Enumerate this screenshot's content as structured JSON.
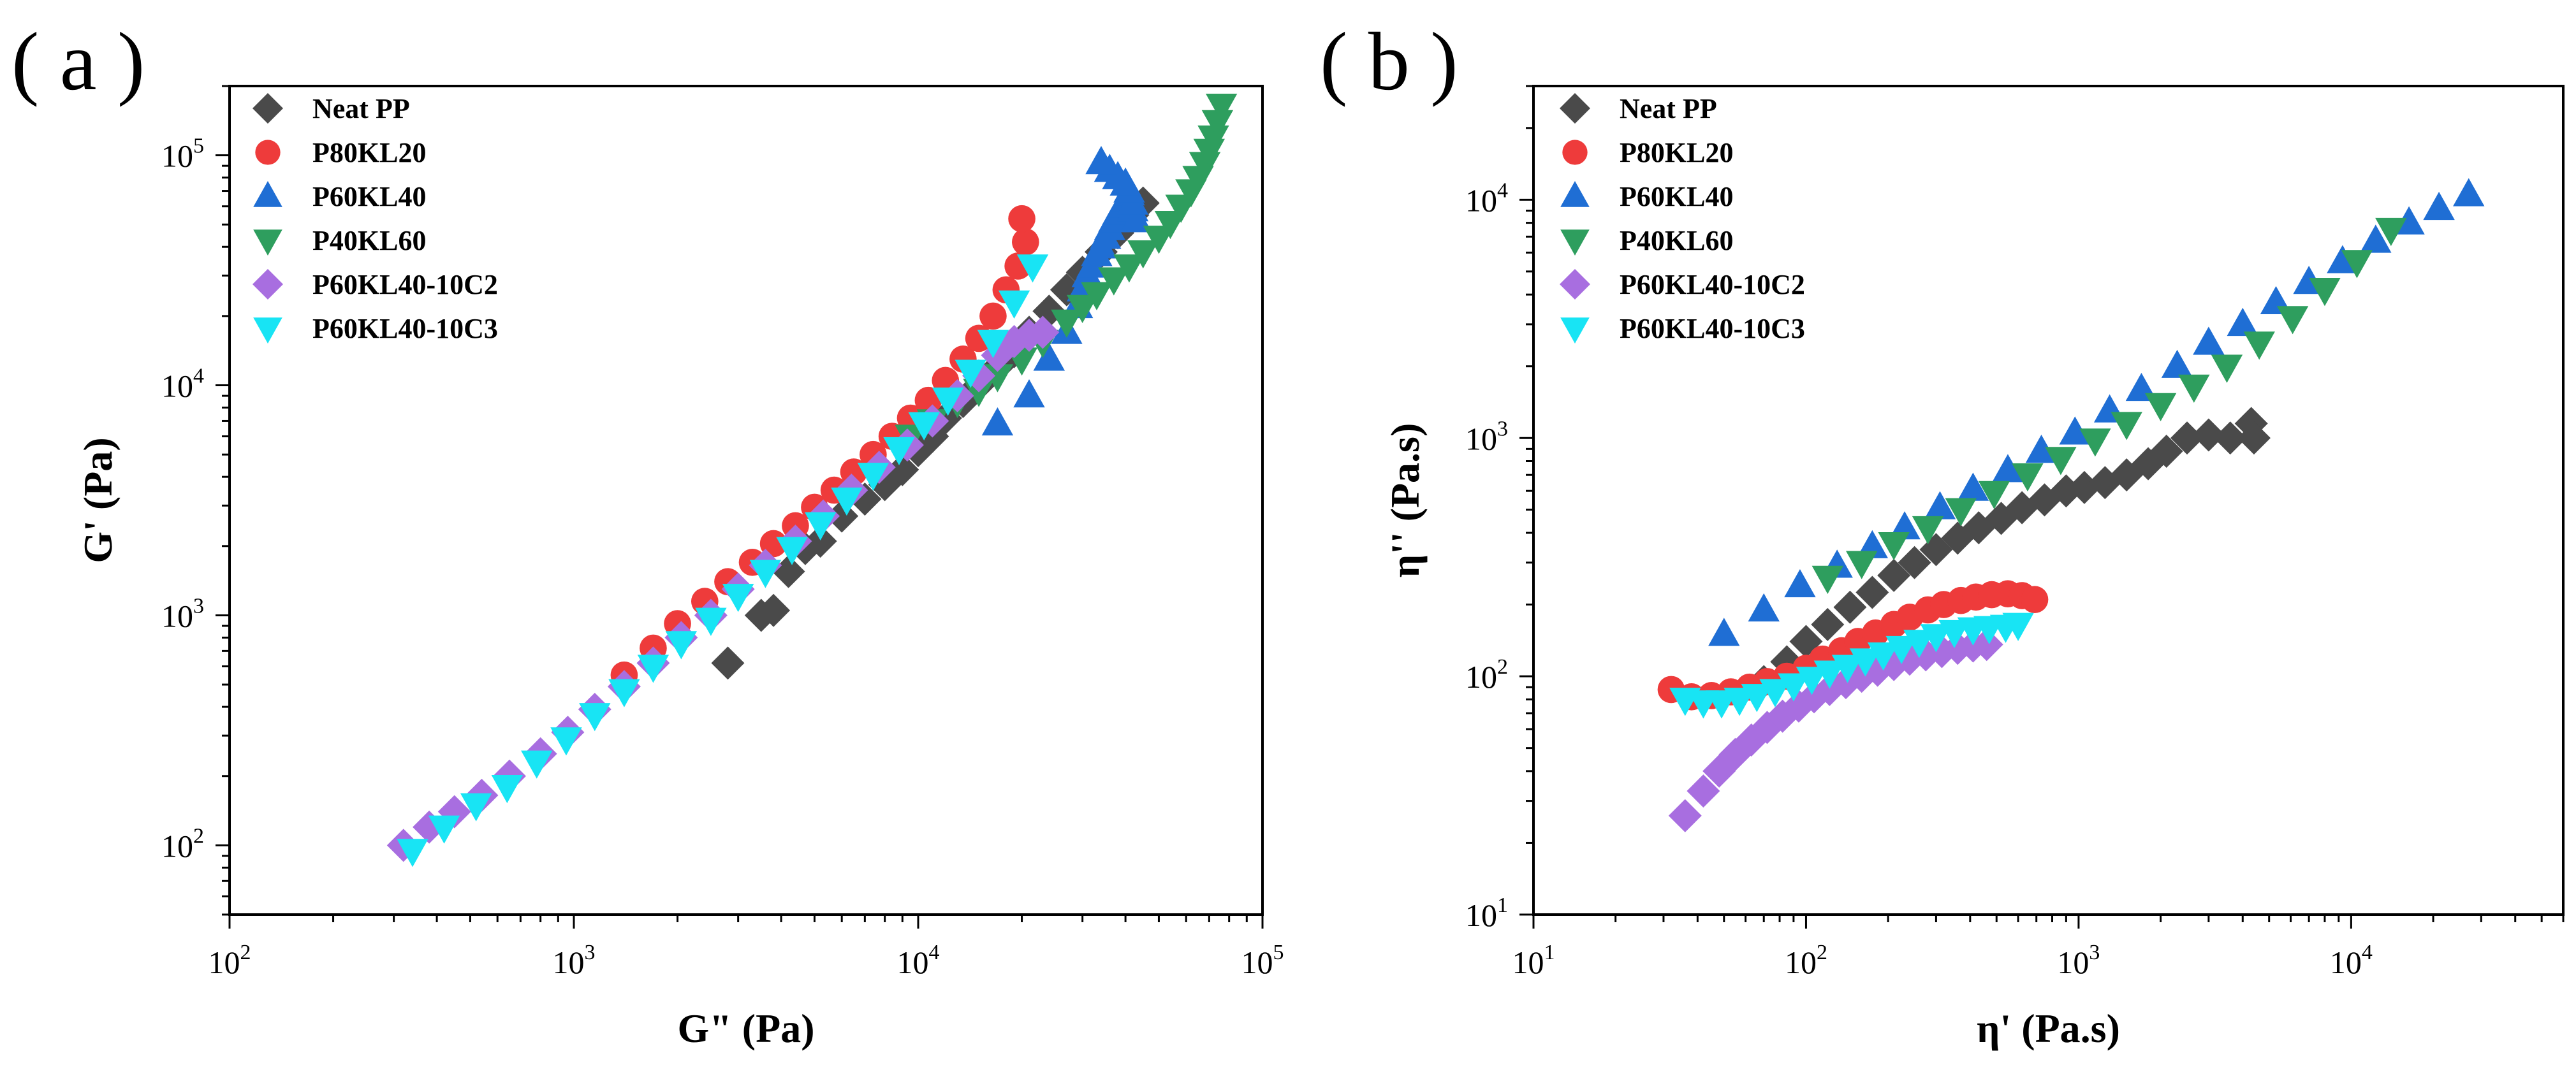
{
  "chart_data": [
    {
      "panel_label": "( a )",
      "type": "scatter",
      "xscale": "log",
      "yscale": "log",
      "xlabel": "G\" (Pa)",
      "ylabel": "G' (Pa)",
      "xlim": [
        100,
        100000
      ],
      "ylim": [
        50,
        200000
      ],
      "xticks": [
        {
          "value": 100,
          "base": "10",
          "exp": "2"
        },
        {
          "value": 1000,
          "base": "10",
          "exp": "3"
        },
        {
          "value": 10000,
          "base": "10",
          "exp": "4"
        },
        {
          "value": 100000,
          "base": "10",
          "exp": "5"
        }
      ],
      "yticks": [
        {
          "value": 100,
          "base": "10",
          "exp": "2"
        },
        {
          "value": 1000,
          "base": "10",
          "exp": "3"
        },
        {
          "value": 10000,
          "base": "10",
          "exp": "4"
        },
        {
          "value": 100000,
          "base": "10",
          "exp": "5"
        }
      ],
      "legend_position": "top-left",
      "series": [
        {
          "name": "Neat PP",
          "marker": "diamond",
          "color": "#4a4a4a",
          "x": [
            2800,
            3500,
            3800,
            4200,
            4700,
            5200,
            6000,
            7000,
            8000,
            9000,
            10000,
            11000,
            12000,
            13500,
            15000,
            17000,
            19000,
            21000,
            24000,
            27000,
            30000,
            34000,
            38000,
            42000,
            45000
          ],
          "y": [
            620,
            1000,
            1050,
            1550,
            1950,
            2100,
            2700,
            3200,
            3700,
            4300,
            5200,
            6000,
            7200,
            8500,
            10000,
            12000,
            14000,
            17000,
            21000,
            26000,
            31000,
            38000,
            46000,
            55000,
            62000
          ]
        },
        {
          "name": "P80KL20",
          "marker": "circle",
          "color": "#ee3b3b",
          "x": [
            1400,
            1700,
            2000,
            2400,
            2800,
            3300,
            3800,
            4400,
            5000,
            5700,
            6500,
            7400,
            8400,
            9500,
            10700,
            12000,
            13500,
            15000,
            16500,
            18000,
            19500,
            20500,
            20000
          ],
          "y": [
            550,
            720,
            920,
            1150,
            1400,
            1700,
            2050,
            2450,
            2950,
            3500,
            4200,
            5000,
            6000,
            7200,
            8600,
            10500,
            13000,
            16000,
            20000,
            26000,
            33000,
            42000,
            53000
          ]
        },
        {
          "name": "P60KL40",
          "marker": "triangle-up",
          "color": "#1f6ed4",
          "x": [
            17000,
            21000,
            24000,
            27000,
            29000,
            30000,
            31000,
            32000,
            33000,
            34000,
            35000,
            36000,
            37000,
            38000,
            39000,
            40000,
            41000,
            42000,
            43000,
            42000,
            41000,
            40000,
            38000,
            36000,
            34000
          ],
          "y": [
            6800,
            9000,
            13000,
            17000,
            22000,
            26000,
            30000,
            33000,
            37000,
            40000,
            44000,
            48000,
            52000,
            56000,
            60000,
            64000,
            68000,
            58000,
            52000,
            62000,
            70000,
            75000,
            80000,
            86000,
            93000
          ]
        },
        {
          "name": "P40KL60",
          "marker": "triangle-down",
          "color": "#2e9e5e",
          "x": [
            9500,
            11000,
            13000,
            15000,
            17000,
            20000,
            23000,
            27000,
            30000,
            33000,
            37000,
            41000,
            45000,
            50000,
            54000,
            58000,
            62000,
            65000,
            68000,
            70000,
            72000,
            74000,
            76000
          ],
          "y": [
            6000,
            7000,
            8500,
            9500,
            11000,
            13000,
            15500,
            19000,
            22000,
            25000,
            29000,
            33000,
            38000,
            44000,
            51000,
            60000,
            70000,
            80000,
            92000,
            105000,
            120000,
            140000,
            165000
          ]
        },
        {
          "name": "P60KL40-10C2",
          "marker": "diamond",
          "color": "#a86ee0",
          "x": [
            320,
            380,
            450,
            540,
            650,
            800,
            960,
            1150,
            1400,
            1700,
            2050,
            2500,
            3000,
            3600,
            4400,
            5300,
            6400,
            7700,
            9300,
            11000,
            13000,
            15000,
            17000,
            19000,
            21000,
            23000
          ],
          "y": [
            100,
            120,
            140,
            165,
            200,
            250,
            310,
            390,
            490,
            620,
            800,
            1000,
            1300,
            1650,
            2100,
            2700,
            3500,
            4400,
            5500,
            7000,
            9000,
            11000,
            13500,
            15500,
            16500,
            17000
          ]
        },
        {
          "name": "P60KL40-10C3",
          "marker": "triangle-down",
          "color": "#18e4f4",
          "x": [
            340,
            420,
            520,
            640,
            780,
            950,
            1150,
            1400,
            1700,
            2050,
            2500,
            3000,
            3600,
            4300,
            5200,
            6200,
            7400,
            8800,
            10400,
            12200,
            14200,
            16500,
            19000,
            21500
          ],
          "y": [
            95,
            120,
            150,
            180,
            230,
            290,
            370,
            470,
            600,
            760,
            960,
            1220,
            1550,
            1950,
            2500,
            3200,
            4100,
            5300,
            6800,
            8700,
            11500,
            15500,
            23000,
            33000
          ]
        }
      ]
    },
    {
      "panel_label": "( b )",
      "type": "scatter",
      "xscale": "log",
      "yscale": "log",
      "xlabel": "η' (Pa.s)",
      "ylabel": "η'' (Pa.s)",
      "xlim": [
        10,
        60000
      ],
      "ylim": [
        10,
        30000
      ],
      "xticks": [
        {
          "value": 10,
          "base": "10",
          "exp": "1"
        },
        {
          "value": 100,
          "base": "10",
          "exp": "2"
        },
        {
          "value": 1000,
          "base": "10",
          "exp": "3"
        },
        {
          "value": 10000,
          "base": "10",
          "exp": "4"
        }
      ],
      "yticks": [
        {
          "value": 10,
          "base": "10",
          "exp": "1"
        },
        {
          "value": 100,
          "base": "10",
          "exp": "2"
        },
        {
          "value": 1000,
          "base": "10",
          "exp": "3"
        },
        {
          "value": 10000,
          "base": "10",
          "exp": "4"
        }
      ],
      "legend_position": "top-left",
      "series": [
        {
          "name": "Neat PP",
          "marker": "diamond",
          "color": "#4a4a4a",
          "x": [
            70,
            85,
            100,
            120,
            145,
            175,
            210,
            250,
            300,
            360,
            430,
            520,
            620,
            750,
            900,
            1050,
            1250,
            1500,
            1800,
            2100,
            2500,
            3000,
            3600,
            4300,
            4400
          ],
          "y": [
            95,
            115,
            140,
            165,
            195,
            225,
            265,
            300,
            340,
            380,
            420,
            460,
            510,
            550,
            600,
            620,
            650,
            700,
            780,
            880,
            1000,
            1030,
            1000,
            1150,
            1000
          ]
        },
        {
          "name": "P80KL20",
          "marker": "circle",
          "color": "#ee3b3b",
          "x": [
            32,
            38,
            45,
            53,
            62,
            72,
            85,
            100,
            115,
            135,
            155,
            180,
            210,
            240,
            280,
            320,
            370,
            420,
            480,
            550,
            620,
            690
          ],
          "y": [
            88,
            82,
            83,
            86,
            90,
            95,
            100,
            108,
            118,
            128,
            140,
            152,
            165,
            177,
            190,
            200,
            208,
            215,
            220,
            222,
            218,
            210
          ]
        },
        {
          "name": "P60KL40",
          "marker": "triangle-up",
          "color": "#1f6ed4",
          "x": [
            50,
            70,
            95,
            130,
            175,
            230,
            310,
            410,
            550,
            730,
            970,
            1300,
            1700,
            2300,
            3000,
            4000,
            5300,
            7000,
            9300,
            12300,
            16300,
            21000,
            27000
          ],
          "y": [
            150,
            190,
            240,
            290,
            350,
            420,
            510,
            610,
            730,
            880,
            1050,
            1300,
            1600,
            2000,
            2500,
            3000,
            3700,
            4500,
            5500,
            6700,
            8000,
            9200,
            10500
          ]
        },
        {
          "name": "P40KL60",
          "marker": "triangle-down",
          "color": "#2e9e5e",
          "x": [
            120,
            160,
            210,
            280,
            370,
            490,
            650,
            860,
            1150,
            1500,
            2000,
            2650,
            3500,
            4600,
            6100,
            8000,
            10500,
            14000
          ],
          "y": [
            260,
            300,
            360,
            420,
            500,
            590,
            700,
            820,
            980,
            1150,
            1380,
            1650,
            2000,
            2500,
            3200,
            4200,
            5500,
            7500
          ]
        },
        {
          "name": "P60KL40-10C2",
          "marker": "diamond",
          "color": "#a86ee0",
          "x": [
            36,
            42,
            48,
            55,
            63,
            72,
            82,
            94,
            107,
            122,
            140,
            160,
            183,
            210,
            240,
            275,
            315,
            360,
            410,
            460
          ],
          "y": [
            26,
            33,
            40,
            47,
            54,
            61,
            68,
            75,
            82,
            88,
            94,
            100,
            106,
            112,
            118,
            123,
            127,
            131,
            134,
            136
          ]
        },
        {
          "name": "P60KL40-10C3",
          "marker": "triangle-down",
          "color": "#18e4f4",
          "x": [
            36,
            42,
            49,
            57,
            66,
            77,
            90,
            105,
            122,
            142,
            165,
            192,
            224,
            260,
            300,
            350,
            410,
            470,
            540,
            600
          ],
          "y": [
            80,
            78,
            78,
            80,
            83,
            87,
            92,
            98,
            104,
            110,
            117,
            124,
            132,
            140,
            148,
            154,
            158,
            160,
            162,
            165
          ]
        }
      ]
    }
  ]
}
